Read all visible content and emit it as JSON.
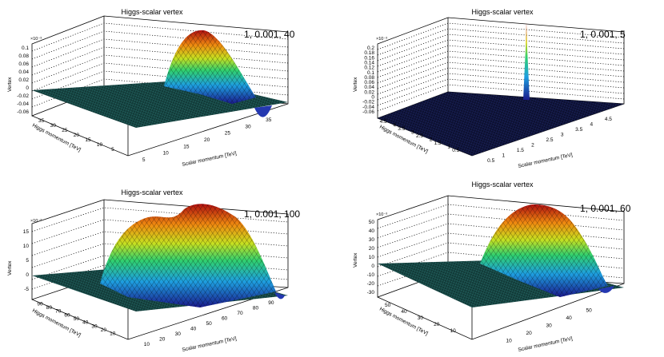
{
  "chart_data": [
    {
      "type": "surface",
      "title": "Higgs-scalar vertex",
      "param_label": "1, 0.001, 40",
      "xlabel": "Scalar momentum [TeV]",
      "ylabel": "Higgs momentum [TeV]",
      "zlabel": "Vertex",
      "z_exponent": "×10⁻³",
      "xticks": [
        "5",
        "10",
        "15",
        "20",
        "25",
        "30",
        "35"
      ],
      "yticks": [
        "5",
        "10",
        "15",
        "20",
        "25",
        "30",
        "35"
      ],
      "zticks": [
        "-0.06",
        "-0.04",
        "-0.02",
        "0",
        "0.02",
        "0.04",
        "0.06",
        "0.08",
        "0.1"
      ],
      "xlim": [
        0,
        38
      ],
      "ylim": [
        0,
        38
      ],
      "zlim": [
        -0.07,
        0.11
      ],
      "surface_peak": 0.11,
      "surface_min": -0.06
    },
    {
      "type": "surface",
      "title": "Higgs-scalar vertex",
      "param_label": "1, 0.001, 5",
      "xlabel": "Scalar momentum [TeV]",
      "ylabel": "Higgs momentum [TeV]",
      "zlabel": "Vertex",
      "z_exponent": "×10⁻³",
      "xticks": [
        "0.5",
        "1",
        "1.5",
        "2",
        "2.5",
        "3",
        "3.5",
        "4",
        "4.5"
      ],
      "yticks": [
        "0.5",
        "1",
        "1.5",
        "2",
        "2.5",
        "3",
        "3.5",
        "4",
        "4.5"
      ],
      "zticks": [
        "-0.06",
        "-0.04",
        "-0.02",
        "0",
        "0.02",
        "0.04",
        "0.06",
        "0.08",
        "0.1",
        "0.12",
        "0.14",
        "0.16",
        "0.18",
        "0.2"
      ],
      "xlim": [
        0,
        4.8
      ],
      "ylim": [
        0,
        4.8
      ],
      "zlim": [
        -0.07,
        0.21
      ],
      "surface_peak": 0.21,
      "surface_min": 0
    },
    {
      "type": "surface",
      "title": "Higgs-scalar vertex",
      "param_label": "1, 0.001, 100",
      "xlabel": "Scalar momentum [TeV]",
      "ylabel": "Higgs momentum [TeV]",
      "zlabel": "Vertex",
      "z_exponent": "×10⁻³",
      "xticks": [
        "10",
        "20",
        "30",
        "40",
        "50",
        "60",
        "70",
        "80",
        "90"
      ],
      "yticks": [
        "10",
        "20",
        "30",
        "40",
        "50",
        "60",
        "70",
        "80",
        "90"
      ],
      "zticks": [
        "-5",
        "0",
        "5",
        "10",
        "15"
      ],
      "xlim": [
        0,
        98
      ],
      "ylim": [
        0,
        98
      ],
      "zlim": [
        -8,
        18
      ],
      "surface_peak": 17,
      "surface_min": -5
    },
    {
      "type": "surface",
      "title": "Higgs-scalar vertex",
      "param_label": "1, 0.001, 60",
      "xlabel": "Scalar momentum [TeV]",
      "ylabel": "Higgs momentum [TeV]",
      "zlabel": "Vertex",
      "z_exponent": "×10⁻³",
      "xticks": [
        "10",
        "20",
        "30",
        "40",
        "50"
      ],
      "yticks": [
        "10",
        "20",
        "30",
        "40",
        "50"
      ],
      "zticks": [
        "-30",
        "-20",
        "-10",
        "0",
        "10",
        "20",
        "30",
        "40",
        "50"
      ],
      "xlim": [
        0,
        58
      ],
      "ylim": [
        0,
        58
      ],
      "zlim": [
        -32,
        52
      ],
      "surface_peak": 52,
      "surface_min": -28
    }
  ]
}
